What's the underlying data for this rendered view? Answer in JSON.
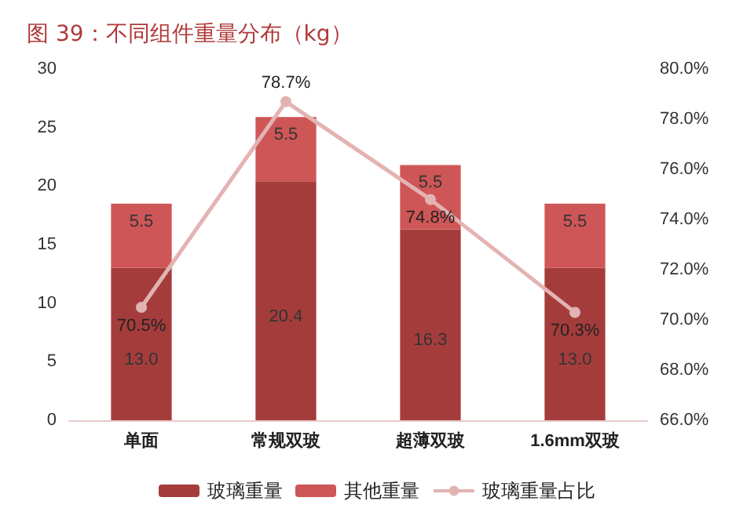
{
  "chart_data": {
    "type": "bar",
    "title": "图 39：不同组件重量分布（kg）",
    "categories": [
      "单面",
      "常规双玻",
      "超薄双玻",
      "1.6mm双玻"
    ],
    "stacked": true,
    "series": [
      {
        "name": "玻璃重量",
        "color": "#a53c3c",
        "values": [
          13.0,
          20.4,
          16.3,
          13.0
        ],
        "value_labels": [
          "13.0",
          "20.4",
          "16.3",
          "13.0"
        ]
      },
      {
        "name": "其他重量",
        "color": "#cf5656",
        "values": [
          5.5,
          5.5,
          5.5,
          5.5
        ],
        "value_labels": [
          "5.5",
          "5.5",
          "5.5",
          "5.5"
        ]
      },
      {
        "name": "玻璃重量占比",
        "type": "line",
        "axis": "y2",
        "color": "#e3b3b3",
        "marker": "circle",
        "values": [
          70.5,
          78.7,
          74.8,
          70.3
        ],
        "value_labels": [
          "70.5%",
          "78.7%",
          "74.8%",
          "70.3%"
        ]
      }
    ],
    "ylim": [
      0,
      30
    ],
    "yticks": [
      0,
      5,
      10,
      15,
      20,
      25,
      30
    ],
    "y2lim": [
      66,
      80
    ],
    "y2ticks": [
      {
        "value": 66,
        "label": "66.0%"
      },
      {
        "value": 68,
        "label": "68.0%"
      },
      {
        "value": 70,
        "label": "70.0%"
      },
      {
        "value": 72,
        "label": "72.0%"
      },
      {
        "value": 74,
        "label": "74.0%"
      },
      {
        "value": 76,
        "label": "76.0%"
      },
      {
        "value": 78,
        "label": "78.0%"
      },
      {
        "value": 80,
        "label": "80.0%"
      }
    ],
    "grid": false,
    "legend": "bottom"
  }
}
